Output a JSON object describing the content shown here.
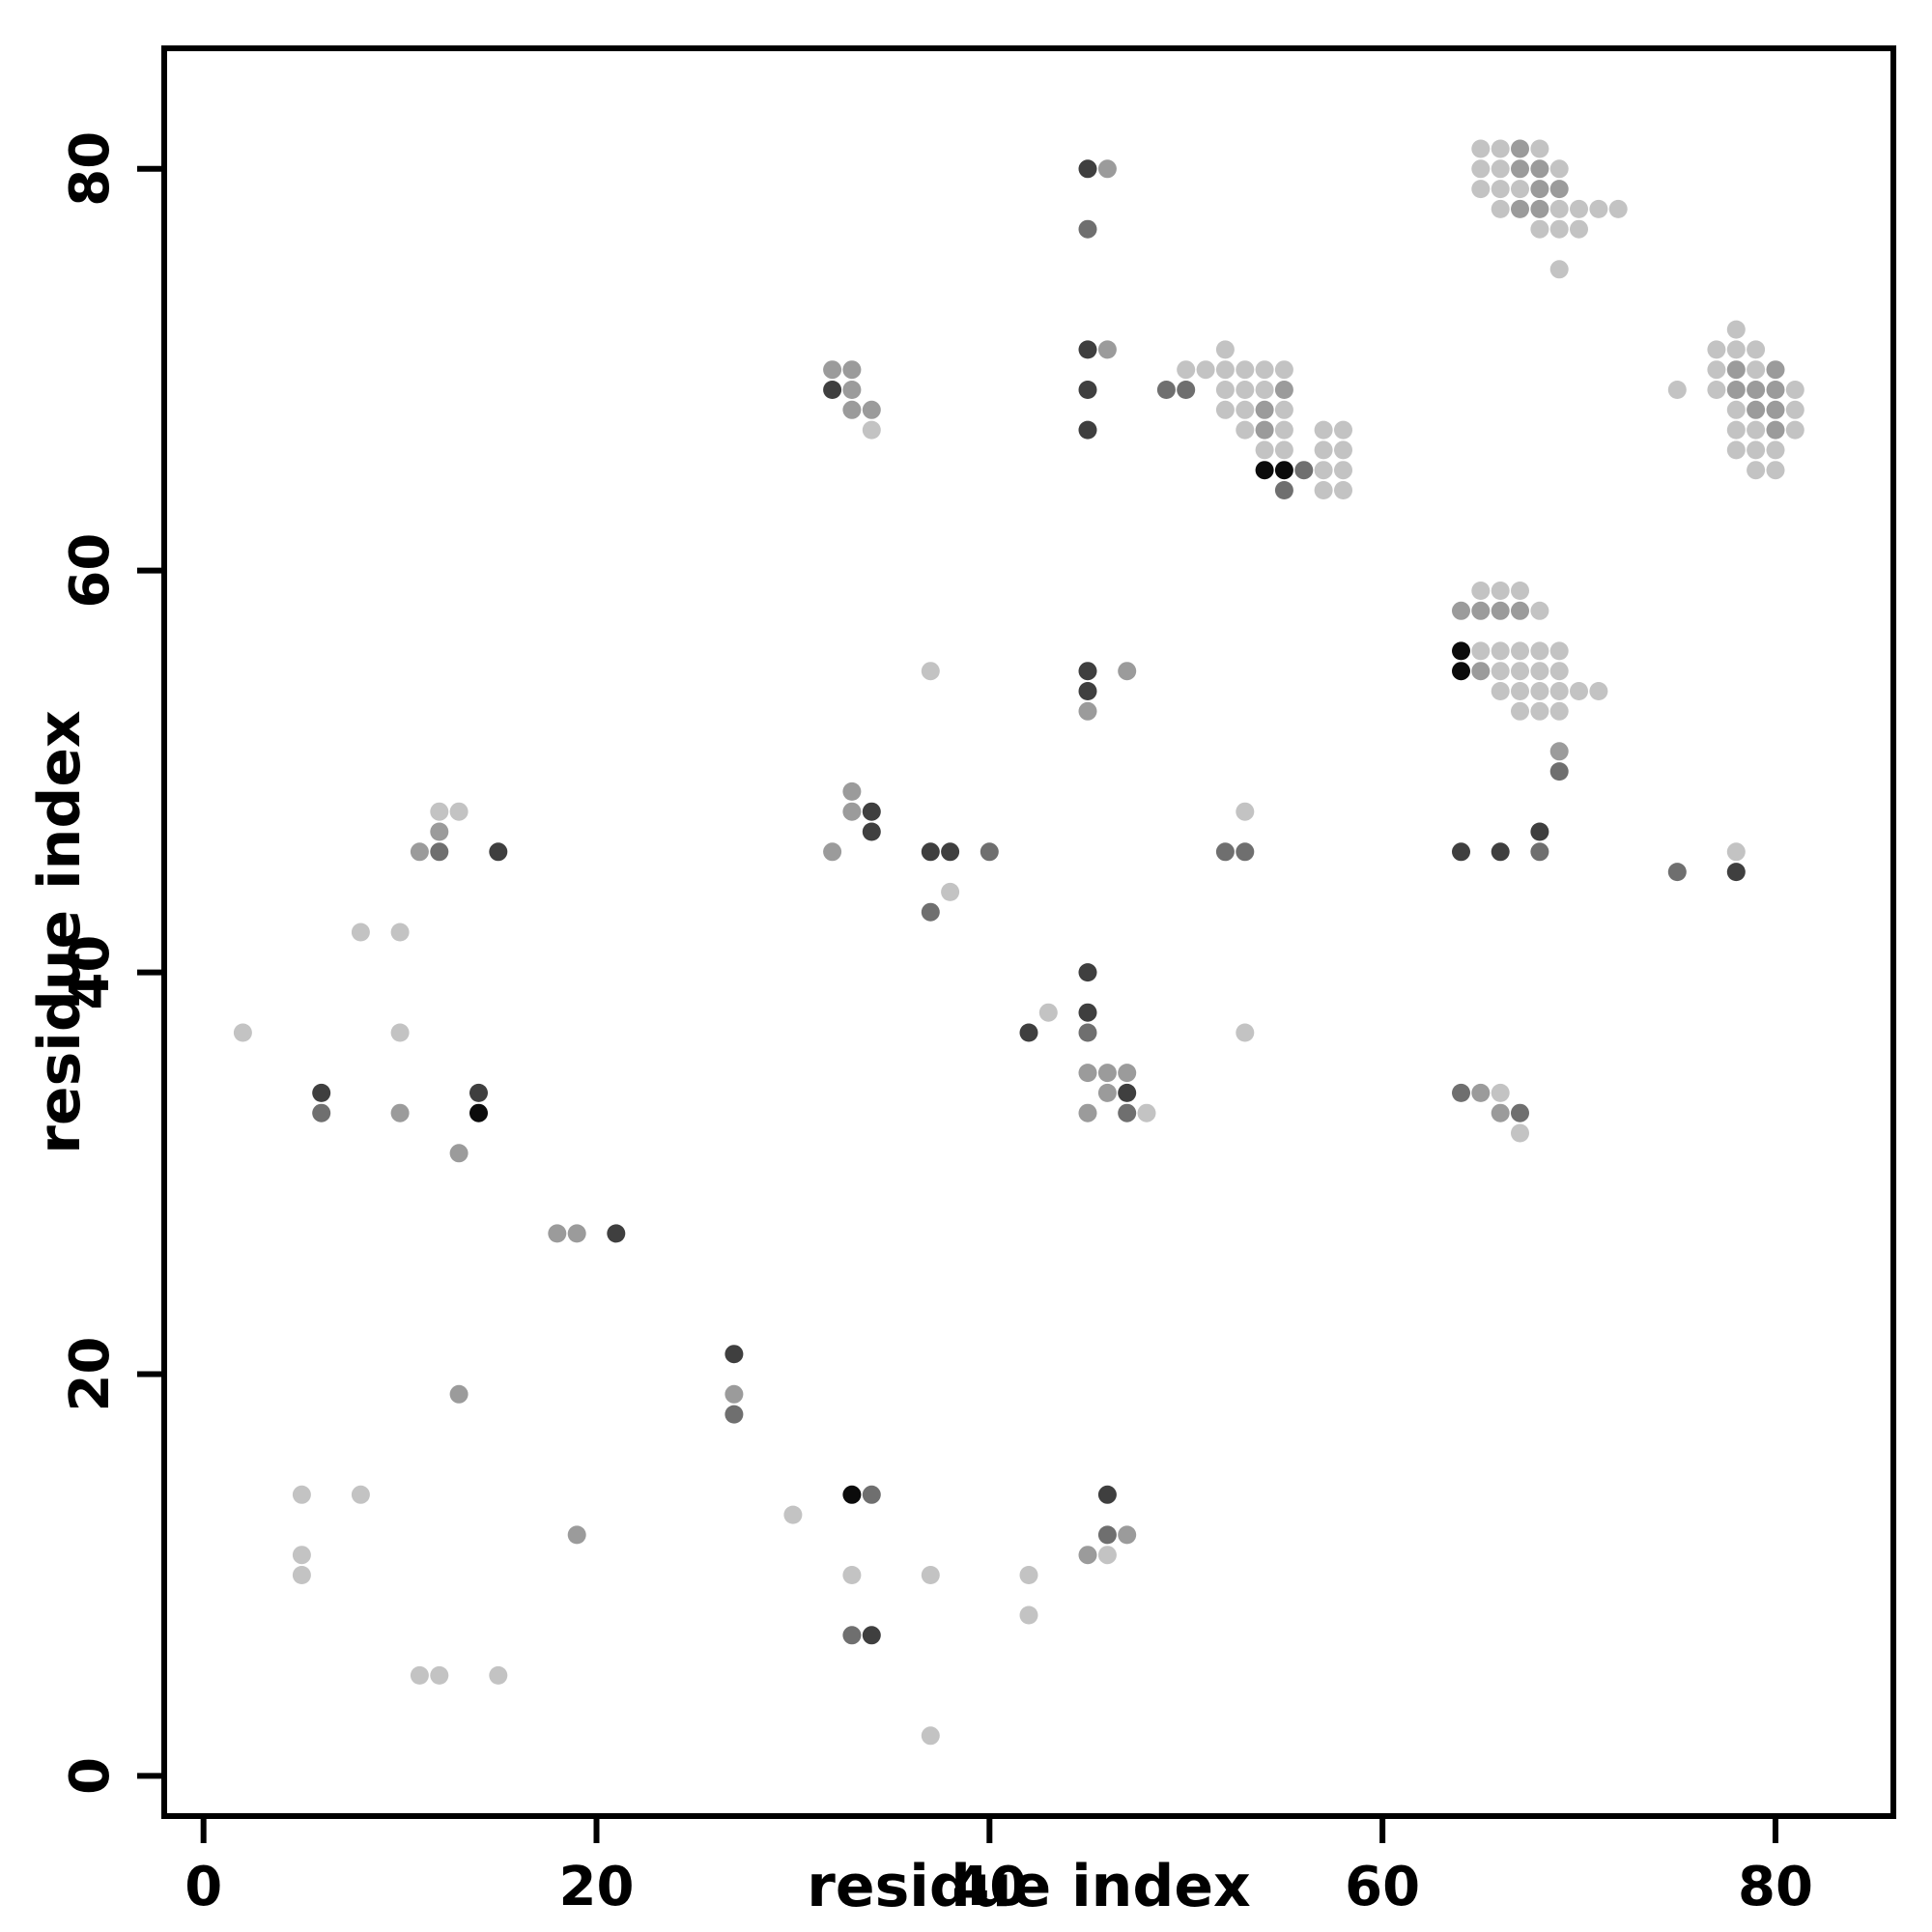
{
  "figure": {
    "background": "#ffffff",
    "axis_color": "#000000"
  },
  "chart_data": {
    "type": "scatter",
    "title": "",
    "xlabel": "residue index",
    "ylabel": "residue index",
    "xlim": [
      -2,
      86
    ],
    "ylim": [
      -2,
      86
    ],
    "xticks": [
      0,
      20,
      40,
      60,
      80
    ],
    "yticks": [
      0,
      20,
      40,
      60,
      80
    ],
    "grid": false,
    "legend": "none",
    "marker": "circle",
    "shade_palette": {
      "L": "#c3c3c3",
      "M": "#9b9b9b",
      "D": "#6f6f6f",
      "V": "#3f3f3f",
      "B": "#0b0b0b"
    },
    "points": [
      [
        65,
        81,
        "L"
      ],
      [
        66,
        81,
        "L"
      ],
      [
        67,
        81,
        "M"
      ],
      [
        68,
        81,
        "L"
      ],
      [
        65,
        80,
        "L"
      ],
      [
        66,
        80,
        "L"
      ],
      [
        67,
        80,
        "M"
      ],
      [
        68,
        80,
        "M"
      ],
      [
        69,
        80,
        "L"
      ],
      [
        65,
        79,
        "L"
      ],
      [
        66,
        79,
        "L"
      ],
      [
        67,
        79,
        "L"
      ],
      [
        68,
        79,
        "M"
      ],
      [
        69,
        79,
        "M"
      ],
      [
        66,
        78,
        "L"
      ],
      [
        67,
        78,
        "M"
      ],
      [
        68,
        78,
        "M"
      ],
      [
        69,
        78,
        "L"
      ],
      [
        70,
        78,
        "L"
      ],
      [
        71,
        78,
        "L"
      ],
      [
        72,
        78,
        "L"
      ],
      [
        68,
        77,
        "L"
      ],
      [
        69,
        77,
        "L"
      ],
      [
        70,
        77,
        "L"
      ],
      [
        69,
        75,
        "L"
      ],
      [
        45,
        80,
        "V"
      ],
      [
        46,
        80,
        "M"
      ],
      [
        45,
        77,
        "D"
      ],
      [
        32,
        70,
        "M"
      ],
      [
        33,
        70,
        "M"
      ],
      [
        32,
        69,
        "V"
      ],
      [
        33,
        69,
        "M"
      ],
      [
        33,
        68,
        "M"
      ],
      [
        34,
        68,
        "M"
      ],
      [
        34,
        67,
        "L"
      ],
      [
        45,
        71,
        "V"
      ],
      [
        46,
        71,
        "M"
      ],
      [
        45,
        69,
        "V"
      ],
      [
        45,
        67,
        "V"
      ],
      [
        50,
        70,
        "L"
      ],
      [
        51,
        70,
        "L"
      ],
      [
        49,
        69,
        "D"
      ],
      [
        50,
        69,
        "D"
      ],
      [
        52,
        71,
        "L"
      ],
      [
        52,
        70,
        "L"
      ],
      [
        53,
        70,
        "L"
      ],
      [
        54,
        70,
        "L"
      ],
      [
        55,
        70,
        "L"
      ],
      [
        52,
        69,
        "L"
      ],
      [
        53,
        69,
        "L"
      ],
      [
        54,
        69,
        "L"
      ],
      [
        55,
        69,
        "M"
      ],
      [
        52,
        68,
        "L"
      ],
      [
        53,
        68,
        "L"
      ],
      [
        54,
        68,
        "M"
      ],
      [
        55,
        68,
        "L"
      ],
      [
        53,
        67,
        "L"
      ],
      [
        54,
        67,
        "M"
      ],
      [
        55,
        67,
        "L"
      ],
      [
        57,
        67,
        "L"
      ],
      [
        58,
        67,
        "L"
      ],
      [
        54,
        66,
        "L"
      ],
      [
        55,
        66,
        "L"
      ],
      [
        57,
        66,
        "L"
      ],
      [
        58,
        66,
        "L"
      ],
      [
        54,
        65,
        "B"
      ],
      [
        55,
        65,
        "B"
      ],
      [
        56,
        65,
        "D"
      ],
      [
        57,
        65,
        "L"
      ],
      [
        58,
        65,
        "L"
      ],
      [
        55,
        64,
        "D"
      ],
      [
        57,
        64,
        "L"
      ],
      [
        58,
        64,
        "L"
      ],
      [
        78,
        72,
        "L"
      ],
      [
        77,
        71,
        "L"
      ],
      [
        78,
        71,
        "L"
      ],
      [
        79,
        71,
        "L"
      ],
      [
        77,
        70,
        "L"
      ],
      [
        78,
        70,
        "M"
      ],
      [
        79,
        70,
        "L"
      ],
      [
        80,
        70,
        "M"
      ],
      [
        75,
        69,
        "L"
      ],
      [
        77,
        69,
        "L"
      ],
      [
        78,
        69,
        "M"
      ],
      [
        79,
        69,
        "M"
      ],
      [
        80,
        69,
        "M"
      ],
      [
        81,
        69,
        "L"
      ],
      [
        78,
        68,
        "L"
      ],
      [
        79,
        68,
        "M"
      ],
      [
        80,
        68,
        "M"
      ],
      [
        81,
        68,
        "L"
      ],
      [
        78,
        67,
        "L"
      ],
      [
        79,
        67,
        "L"
      ],
      [
        80,
        67,
        "M"
      ],
      [
        81,
        67,
        "L"
      ],
      [
        78,
        66,
        "L"
      ],
      [
        79,
        66,
        "L"
      ],
      [
        80,
        66,
        "L"
      ],
      [
        79,
        65,
        "L"
      ],
      [
        80,
        65,
        "L"
      ],
      [
        65,
        59,
        "L"
      ],
      [
        66,
        59,
        "L"
      ],
      [
        67,
        59,
        "L"
      ],
      [
        64,
        58,
        "M"
      ],
      [
        65,
        58,
        "M"
      ],
      [
        66,
        58,
        "M"
      ],
      [
        67,
        58,
        "M"
      ],
      [
        68,
        58,
        "L"
      ],
      [
        64,
        56,
        "B"
      ],
      [
        65,
        56,
        "L"
      ],
      [
        66,
        56,
        "L"
      ],
      [
        67,
        56,
        "L"
      ],
      [
        68,
        56,
        "L"
      ],
      [
        69,
        56,
        "L"
      ],
      [
        64,
        55,
        "B"
      ],
      [
        65,
        55,
        "M"
      ],
      [
        66,
        55,
        "L"
      ],
      [
        67,
        55,
        "L"
      ],
      [
        68,
        55,
        "L"
      ],
      [
        69,
        55,
        "L"
      ],
      [
        66,
        54,
        "L"
      ],
      [
        67,
        54,
        "L"
      ],
      [
        68,
        54,
        "L"
      ],
      [
        69,
        54,
        "L"
      ],
      [
        70,
        54,
        "L"
      ],
      [
        71,
        54,
        "L"
      ],
      [
        67,
        53,
        "L"
      ],
      [
        68,
        53,
        "L"
      ],
      [
        69,
        53,
        "L"
      ],
      [
        69,
        51,
        "M"
      ],
      [
        69,
        50,
        "D"
      ],
      [
        37,
        55,
        "L"
      ],
      [
        45,
        55,
        "V"
      ],
      [
        47,
        55,
        "M"
      ],
      [
        45,
        54,
        "V"
      ],
      [
        45,
        53,
        "M"
      ],
      [
        33,
        49,
        "M"
      ],
      [
        33,
        48,
        "M"
      ],
      [
        34,
        48,
        "V"
      ],
      [
        34,
        47,
        "V"
      ],
      [
        32,
        46,
        "M"
      ],
      [
        37,
        46,
        "V"
      ],
      [
        38,
        46,
        "V"
      ],
      [
        40,
        46,
        "D"
      ],
      [
        38,
        44,
        "L"
      ],
      [
        37,
        43,
        "D"
      ],
      [
        12,
        48,
        "L"
      ],
      [
        13,
        48,
        "L"
      ],
      [
        12,
        47,
        "M"
      ],
      [
        11,
        46,
        "M"
      ],
      [
        12,
        46,
        "D"
      ],
      [
        15,
        46,
        "V"
      ],
      [
        53,
        48,
        "L"
      ],
      [
        52,
        46,
        "D"
      ],
      [
        53,
        46,
        "D"
      ],
      [
        64,
        46,
        "V"
      ],
      [
        66,
        46,
        "V"
      ],
      [
        68,
        47,
        "V"
      ],
      [
        68,
        46,
        "D"
      ],
      [
        75,
        45,
        "D"
      ],
      [
        78,
        46,
        "L"
      ],
      [
        78,
        45,
        "V"
      ],
      [
        8,
        42,
        "L"
      ],
      [
        10,
        42,
        "L"
      ],
      [
        2,
        37,
        "L"
      ],
      [
        10,
        37,
        "L"
      ],
      [
        42,
        37,
        "V"
      ],
      [
        43,
        38,
        "L"
      ],
      [
        45,
        40,
        "V"
      ],
      [
        45,
        38,
        "V"
      ],
      [
        45,
        37,
        "D"
      ],
      [
        53,
        37,
        "L"
      ],
      [
        45,
        35,
        "M"
      ],
      [
        46,
        35,
        "M"
      ],
      [
        47,
        35,
        "M"
      ],
      [
        46,
        34,
        "M"
      ],
      [
        47,
        34,
        "V"
      ],
      [
        45,
        33,
        "M"
      ],
      [
        47,
        33,
        "D"
      ],
      [
        48,
        33,
        "L"
      ],
      [
        6,
        34,
        "V"
      ],
      [
        6,
        33,
        "D"
      ],
      [
        14,
        34,
        "V"
      ],
      [
        14,
        33,
        "B"
      ],
      [
        10,
        33,
        "M"
      ],
      [
        13,
        31,
        "M"
      ],
      [
        64,
        34,
        "D"
      ],
      [
        65,
        34,
        "M"
      ],
      [
        66,
        34,
        "L"
      ],
      [
        66,
        33,
        "M"
      ],
      [
        67,
        33,
        "D"
      ],
      [
        67,
        32,
        "L"
      ],
      [
        18,
        27,
        "M"
      ],
      [
        19,
        27,
        "M"
      ],
      [
        21,
        27,
        "V"
      ],
      [
        27,
        21,
        "V"
      ],
      [
        13,
        19,
        "M"
      ],
      [
        27,
        19,
        "M"
      ],
      [
        27,
        18,
        "D"
      ],
      [
        5,
        14,
        "L"
      ],
      [
        8,
        14,
        "L"
      ],
      [
        33,
        14,
        "B"
      ],
      [
        34,
        14,
        "D"
      ],
      [
        46,
        14,
        "V"
      ],
      [
        30,
        13,
        "L"
      ],
      [
        19,
        12,
        "M"
      ],
      [
        5,
        11,
        "L"
      ],
      [
        5,
        10,
        "L"
      ],
      [
        46,
        12,
        "D"
      ],
      [
        47,
        12,
        "M"
      ],
      [
        45,
        11,
        "M"
      ],
      [
        46,
        11,
        "L"
      ],
      [
        33,
        10,
        "L"
      ],
      [
        37,
        10,
        "L"
      ],
      [
        42,
        10,
        "L"
      ],
      [
        42,
        8,
        "L"
      ],
      [
        33,
        7,
        "D"
      ],
      [
        34,
        7,
        "V"
      ],
      [
        11,
        5,
        "L"
      ],
      [
        12,
        5,
        "L"
      ],
      [
        15,
        5,
        "L"
      ],
      [
        37,
        2,
        "L"
      ]
    ]
  }
}
